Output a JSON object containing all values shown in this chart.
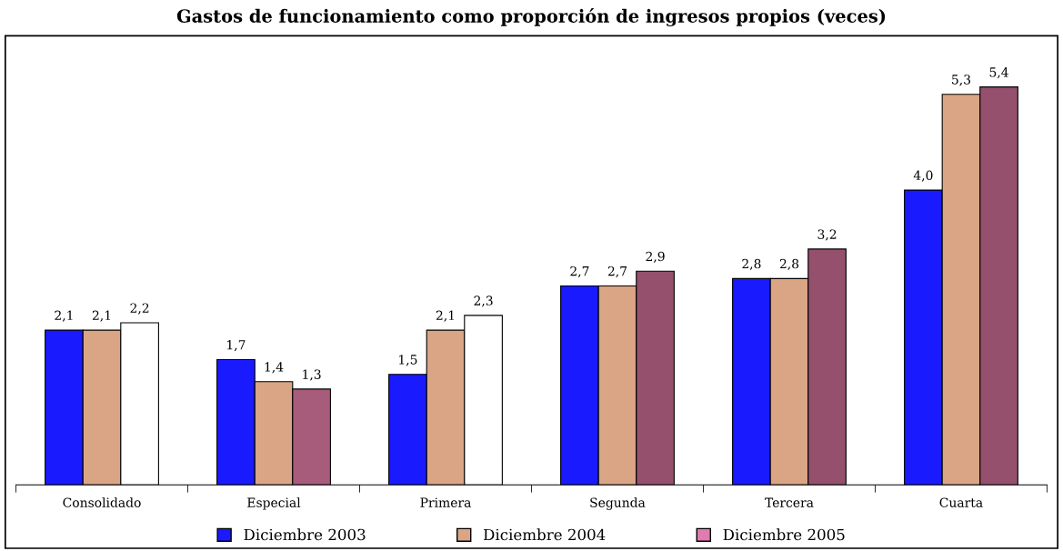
{
  "chart_data": {
    "type": "bar",
    "title": "Gastos de funcionamiento como proporción de ingresos propios (veces)",
    "categories": [
      "Consolidado",
      "Especial",
      "Primera",
      "Segunda",
      "Tercera",
      "Cuarta"
    ],
    "series": [
      {
        "name": "Diciembre 2003",
        "color": "#1a1aff",
        "values": [
          2.1,
          1.7,
          1.5,
          2.7,
          2.8,
          4.0
        ],
        "value_labels": [
          "2,1",
          "1,7",
          "1,5",
          "2,7",
          "2,8",
          "4,0"
        ]
      },
      {
        "name": "Diciembre 2004",
        "color": "#d9a585",
        "values": [
          2.1,
          1.4,
          2.1,
          2.7,
          2.8,
          5.3
        ],
        "value_labels": [
          "2,1",
          "1,4",
          "2,1",
          "2,7",
          "2,8",
          "5,3"
        ]
      },
      {
        "name": "Diciembre 2005",
        "color": "#e07ab0",
        "colors": [
          "#ffffff",
          "#a85c7c",
          "#ffffff",
          "#94506c",
          "#94506c",
          "#94506c"
        ],
        "values": [
          2.2,
          1.3,
          2.3,
          2.9,
          3.2,
          5.4
        ],
        "value_labels": [
          "2,2",
          "1,3",
          "2,3",
          "2,9",
          "3,2",
          "5,4"
        ]
      }
    ],
    "legend": "bottom",
    "grid": false
  }
}
